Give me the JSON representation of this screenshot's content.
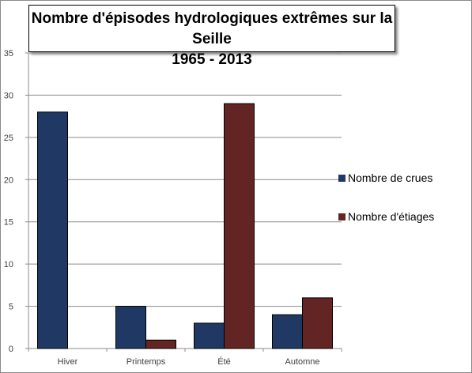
{
  "chart_data": {
    "type": "bar",
    "title": "Nombre d'épisodes hydrologiques extrêmes sur la Seille",
    "subtitle": "1965 - 2013",
    "categories": [
      "Hiver",
      "Printemps",
      "Été",
      "Automne"
    ],
    "series": [
      {
        "name": "Nombre de crues",
        "values": [
          28,
          5,
          3,
          4
        ],
        "color": "#1f3864"
      },
      {
        "name": "Nombre d'étiages",
        "values": [
          0,
          1,
          29,
          6
        ],
        "color": "#632523"
      }
    ],
    "xlabel": "",
    "ylabel": "",
    "ylim": [
      0,
      35
    ],
    "yticks": [
      0,
      5,
      10,
      15,
      20,
      25,
      30,
      35
    ],
    "grid": true,
    "legend_position": "right"
  }
}
